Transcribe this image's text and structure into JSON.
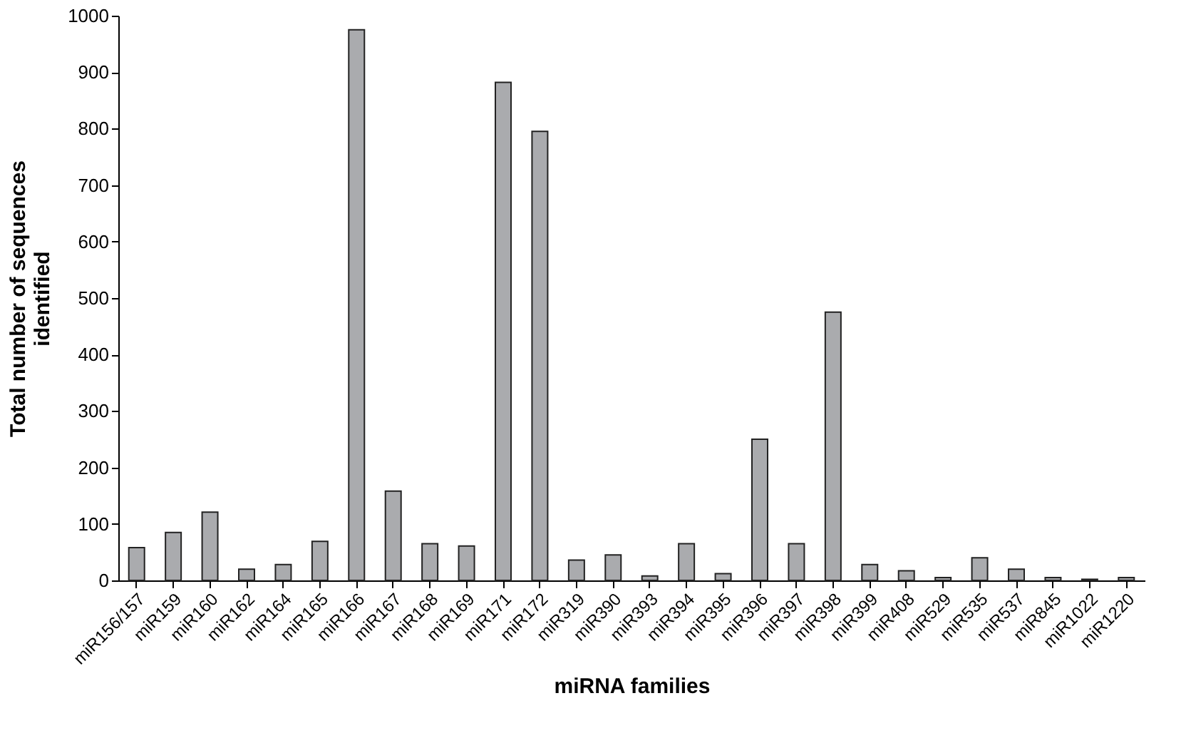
{
  "chart_data": {
    "type": "bar",
    "xlabel": "miRNA families",
    "ylabel": "Total number of sequences identified",
    "categories": [
      "miR156/157",
      "miR159",
      "miR160",
      "miR162",
      "miR164",
      "miR165",
      "miR166",
      "miR167",
      "miR168",
      "miR169",
      "miR171",
      "miR172",
      "miR319",
      "miR390",
      "miR393",
      "miR394",
      "miR395",
      "miR396",
      "miR397",
      "miR398",
      "miR399",
      "miR408",
      "miR529",
      "miR535",
      "miR537",
      "miR845",
      "miR1022",
      "miR1220"
    ],
    "values": [
      58,
      85,
      121,
      20,
      28,
      69,
      975,
      158,
      65,
      61,
      882,
      795,
      36,
      45,
      8,
      65,
      12,
      250,
      65,
      475,
      28,
      17,
      5,
      40,
      20,
      5,
      2,
      5
    ],
    "color": "#aaabae",
    "ylim": [
      0,
      1000
    ],
    "yticks": [
      0,
      100,
      200,
      300,
      400,
      500,
      600,
      700,
      800,
      900,
      1000
    ],
    "grid": false
  }
}
